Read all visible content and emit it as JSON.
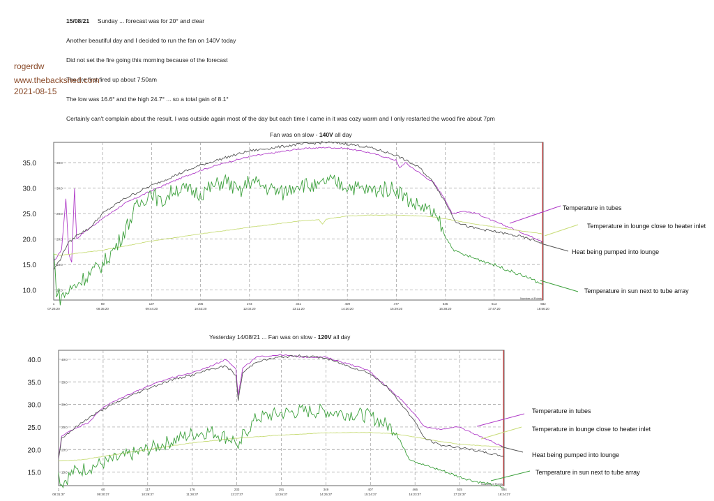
{
  "notes": {
    "date": "15/08/21",
    "line1_rest": "Sunday  ...  forecast was for 20° and clear",
    "line2": "Another beautiful day and I decided to run the fan on 140V today",
    "line3": "Did not set the fire going this morning because of the forecast",
    "line4": "The fire first fired up about 7:50am",
    "line5": "The low was 16.6° and the high 24.7°  ...  so a total gain of 8.1°",
    "line6": "Certainly can't complain about the result. I was outside again most of the day but each time I came in it was cozy warm and I only restarted the wood fire about 7pm"
  },
  "watermark": {
    "user": "rogerdw",
    "site": "www.thebackshed.com",
    "date": "2021-08-15"
  },
  "colors": {
    "tubes": "#b03cc8",
    "lounge_inlet": "#c8dc78",
    "pumped": "#555555",
    "sun": "#3ca03c",
    "grid": "#9a9a9a",
    "cursor": "#e03030"
  },
  "chart_data": [
    {
      "type": "line",
      "title_prefix": "Fan was on slow - ",
      "title_bold": "140V",
      "title_suffix": " all day",
      "ylim": [
        8,
        39
      ],
      "y_ticks": [
        "35.0",
        "30.0",
        "25.0",
        "20.0",
        "15.0",
        "10.0"
      ],
      "y_tick_values": [
        35,
        30,
        25,
        20,
        15,
        10
      ],
      "x_ticks": [
        "1",
        "69",
        "137",
        "205",
        "273",
        "341",
        "409",
        "477",
        "545",
        "613",
        "682"
      ],
      "x_time_ticks": [
        "07:26:20",
        "08:35:20",
        "09:44:20",
        "10:53:20",
        "12:02:20",
        "13:11:20",
        "14:20:20",
        "15:29:20",
        "16:38:20",
        "17:47:20",
        "18:56:20"
      ],
      "x_range": [
        1,
        682
      ],
      "corner_label": "Number of Points",
      "legend": [
        "Temperature in tubes",
        "Temperature in lounge close to heater inlet",
        "Heat being pumped into lounge",
        "Temperature in sun next to tube array"
      ],
      "series": [
        {
          "name": "Temperature in tubes",
          "points": [
            [
              1,
              15.5
            ],
            [
              8,
              17
            ],
            [
              12,
              18
            ],
            [
              18,
              28
            ],
            [
              22,
              17
            ],
            [
              26,
              15.5
            ],
            [
              30,
              30
            ],
            [
              33,
              20
            ],
            [
              40,
              21
            ],
            [
              69,
              24
            ],
            [
              100,
              27
            ],
            [
              137,
              29.5
            ],
            [
              170,
              31.5
            ],
            [
              205,
              33.5
            ],
            [
              240,
              35
            ],
            [
              273,
              36.2
            ],
            [
              310,
              37
            ],
            [
              341,
              37.7
            ],
            [
              380,
              38
            ],
            [
              409,
              37.8
            ],
            [
              440,
              37
            ],
            [
              477,
              35.5
            ],
            [
              482,
              34
            ],
            [
              490,
              35
            ],
            [
              510,
              33
            ],
            [
              530,
              31
            ],
            [
              545,
              28
            ],
            [
              555,
              25
            ],
            [
              570,
              25.5
            ],
            [
              590,
              25
            ],
            [
              613,
              23.5
            ],
            [
              640,
              22
            ],
            [
              660,
              20.8
            ],
            [
              682,
              19.5
            ]
          ]
        },
        {
          "name": "Temperature in lounge close to heater inlet",
          "points": [
            [
              1,
              17
            ],
            [
              10,
              16.8
            ],
            [
              40,
              17.3
            ],
            [
              69,
              17.8
            ],
            [
              137,
              19.6
            ],
            [
              205,
              21.0
            ],
            [
              273,
              22.3
            ],
            [
              341,
              23.5
            ],
            [
              370,
              23.8
            ],
            [
              375,
              22.9
            ],
            [
              380,
              23.9
            ],
            [
              409,
              24.5
            ],
            [
              440,
              24.7
            ],
            [
              477,
              24.7
            ],
            [
              520,
              24.5
            ],
            [
              545,
              24.0
            ],
            [
              580,
              23.1
            ],
            [
              613,
              22.4
            ],
            [
              650,
              21.6
            ],
            [
              682,
              21.0
            ]
          ]
        },
        {
          "name": "Heat being pumped into lounge",
          "points": [
            [
              1,
              14
            ],
            [
              10,
              16
            ],
            [
              20,
              19
            ],
            [
              35,
              21
            ],
            [
              50,
              22
            ],
            [
              69,
              25
            ],
            [
              100,
              28
            ],
            [
              137,
              30.5
            ],
            [
              170,
              32.5
            ],
            [
              205,
              34.5
            ],
            [
              240,
              36
            ],
            [
              273,
              37.3
            ],
            [
              310,
              38
            ],
            [
              341,
              38.6
            ],
            [
              380,
              39
            ],
            [
              409,
              38.7
            ],
            [
              440,
              38
            ],
            [
              477,
              36.5
            ],
            [
              510,
              34
            ],
            [
              530,
              31
            ],
            [
              545,
              27.5
            ],
            [
              560,
              23.5
            ],
            [
              580,
              22.3
            ],
            [
              613,
              21.5
            ],
            [
              650,
              20.5
            ],
            [
              682,
              19.2
            ]
          ]
        },
        {
          "name": "Temperature in sun next to tube array",
          "points": [
            [
              1,
              17
            ],
            [
              5,
              10
            ],
            [
              10,
              8.5
            ],
            [
              20,
              9.5
            ],
            [
              40,
              12
            ],
            [
              69,
              15
            ],
            [
              90,
              19
            ],
            [
              115,
              26
            ],
            [
              137,
              29.5
            ],
            [
              150,
              27
            ],
            [
              170,
              30
            ],
            [
              205,
              29
            ],
            [
              240,
              31.5
            ],
            [
              260,
              29
            ],
            [
              273,
              31.5
            ],
            [
              300,
              30
            ],
            [
              320,
              29
            ],
            [
              341,
              31
            ],
            [
              370,
              30
            ],
            [
              380,
              31.5
            ],
            [
              409,
              30.5
            ],
            [
              440,
              29.5
            ],
            [
              477,
              30
            ],
            [
              500,
              27
            ],
            [
              520,
              26
            ],
            [
              540,
              23
            ],
            [
              545,
              20.5
            ],
            [
              560,
              17.5
            ],
            [
              580,
              16.5
            ],
            [
              613,
              15
            ],
            [
              640,
              13.5
            ],
            [
              660,
              12.5
            ],
            [
              682,
              11
            ]
          ]
        }
      ]
    },
    {
      "type": "line",
      "title_prefix": "Yesterday   14/08/21   ...  Fan was on slow - ",
      "title_bold": "120V",
      "title_suffix": " all day",
      "ylim": [
        12,
        42
      ],
      "y_ticks": [
        "40.0",
        "35.0",
        "30.0",
        "25.0",
        "20.0",
        "15.0"
      ],
      "y_tick_values": [
        40,
        35,
        30,
        25,
        20,
        15
      ],
      "x_ticks": [
        "1",
        "60",
        "117",
        "176",
        "233",
        "291",
        "349",
        "407",
        "466",
        "525",
        "584"
      ],
      "x_time_ticks": [
        "08:31:37",
        "09:30:37",
        "10:29:37",
        "11:28:37",
        "12:27:37",
        "13:26:37",
        "14:25:37",
        "15:24:37",
        "16:23:37",
        "17:22:37",
        "18:24:37"
      ],
      "x_range": [
        1,
        584
      ],
      "corner_label": "Number of Points",
      "legend": [
        "Temperature in tubes",
        "Temperature in lounge close to heater inlet",
        "Heat being pumped into lounge",
        "Temperature in sun next to tube array"
      ],
      "series": [
        {
          "name": "Temperature in tubes",
          "points": [
            [
              1,
              18
            ],
            [
              5,
              23
            ],
            [
              20,
              24.5
            ],
            [
              40,
              26
            ],
            [
              60,
              29.5
            ],
            [
              90,
              32
            ],
            [
              117,
              34
            ],
            [
              150,
              36
            ],
            [
              176,
              37
            ],
            [
              200,
              38.5
            ],
            [
              220,
              40
            ],
            [
              233,
              38
            ],
            [
              236,
              32
            ],
            [
              242,
              38
            ],
            [
              260,
              40.5
            ],
            [
              291,
              41
            ],
            [
              320,
              40.5
            ],
            [
              349,
              40.5
            ],
            [
              380,
              39
            ],
            [
              407,
              37.5
            ],
            [
              430,
              34
            ],
            [
              450,
              31
            ],
            [
              466,
              28
            ],
            [
              480,
              25
            ],
            [
              500,
              24.5
            ],
            [
              525,
              25
            ],
            [
              545,
              23.5
            ],
            [
              565,
              22
            ],
            [
              584,
              20.5
            ]
          ]
        },
        {
          "name": "Temperature in lounge close to heater inlet",
          "points": [
            [
              1,
              17.5
            ],
            [
              30,
              17.7
            ],
            [
              60,
              18.5
            ],
            [
              117,
              20.0
            ],
            [
              176,
              21.5
            ],
            [
              233,
              22.5
            ],
            [
              291,
              23.2
            ],
            [
              349,
              23.7
            ],
            [
              407,
              23.8
            ],
            [
              440,
              23.5
            ],
            [
              466,
              22.8
            ],
            [
              500,
              21.8
            ],
            [
              525,
              21.2
            ],
            [
              560,
              20.8
            ],
            [
              584,
              20.5
            ]
          ]
        },
        {
          "name": "Heat being pumped into lounge",
          "points": [
            [
              1,
              18
            ],
            [
              5,
              22.5
            ],
            [
              20,
              24.5
            ],
            [
              40,
              27
            ],
            [
              60,
              29
            ],
            [
              90,
              31.5
            ],
            [
              117,
              33.5
            ],
            [
              150,
              35.5
            ],
            [
              176,
              36.5
            ],
            [
              200,
              37.8
            ],
            [
              220,
              38.5
            ],
            [
              233,
              36.5
            ],
            [
              236,
              31
            ],
            [
              242,
              37
            ],
            [
              260,
              39.5
            ],
            [
              291,
              40.5
            ],
            [
              320,
              40.8
            ],
            [
              349,
              40.3
            ],
            [
              380,
              38.5
            ],
            [
              407,
              37
            ],
            [
              430,
              34
            ],
            [
              450,
              30
            ],
            [
              466,
              26.5
            ],
            [
              480,
              22.5
            ],
            [
              500,
              21
            ],
            [
              525,
              20.5
            ],
            [
              560,
              19.3
            ],
            [
              584,
              18.5
            ]
          ]
        },
        {
          "name": "Temperature in sun next to tube array",
          "points": [
            [
              1,
              14.5
            ],
            [
              5,
              12.5
            ],
            [
              20,
              15
            ],
            [
              60,
              17
            ],
            [
              117,
              20
            ],
            [
              176,
              23.5
            ],
            [
              200,
              24
            ],
            [
              233,
              22
            ],
            [
              236,
              19
            ],
            [
              242,
              23
            ],
            [
              260,
              27
            ],
            [
              291,
              28
            ],
            [
              320,
              28.5
            ],
            [
              349,
              28.5
            ],
            [
              380,
              28
            ],
            [
              407,
              27.5
            ],
            [
              430,
              25.5
            ],
            [
              445,
              24
            ],
            [
              450,
              21
            ],
            [
              460,
              18
            ],
            [
              480,
              16.5
            ],
            [
              500,
              15.5
            ],
            [
              525,
              14
            ],
            [
              545,
              13
            ],
            [
              560,
              12.5
            ],
            [
              584,
              11.5
            ]
          ]
        }
      ]
    }
  ]
}
